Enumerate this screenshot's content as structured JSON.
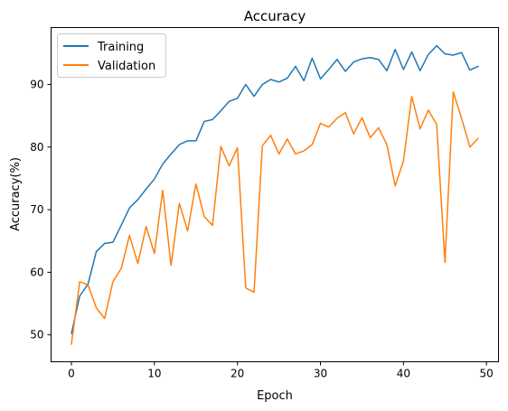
{
  "chart_data": {
    "type": "line",
    "title": "Accuracy",
    "xlabel": "Epoch",
    "ylabel": "Accuracy(%)",
    "xlim": [
      -2.45,
      51.45
    ],
    "ylim": [
      45.7,
      99.1
    ],
    "xticks": [
      0,
      10,
      20,
      30,
      40,
      50
    ],
    "yticks": [
      50,
      60,
      70,
      80,
      90
    ],
    "legend_position": "top-left",
    "grid": false,
    "x": [
      0,
      1,
      2,
      3,
      4,
      5,
      6,
      7,
      8,
      9,
      10,
      11,
      12,
      13,
      14,
      15,
      16,
      17,
      18,
      19,
      20,
      21,
      22,
      23,
      24,
      25,
      26,
      27,
      28,
      29,
      30,
      31,
      32,
      33,
      34,
      35,
      36,
      37,
      38,
      39,
      40,
      41,
      42,
      43,
      44,
      45,
      46,
      47,
      48,
      49
    ],
    "series": [
      {
        "name": "Training",
        "color": "#1f77b4",
        "values": [
          50.2,
          56.2,
          58.1,
          63.3,
          64.6,
          64.8,
          67.5,
          70.3,
          71.6,
          73.3,
          74.9,
          77.3,
          78.9,
          80.4,
          81.0,
          81.0,
          84.1,
          84.4,
          85.8,
          87.3,
          87.8,
          90.0,
          88.1,
          90.0,
          90.8,
          90.4,
          91.0,
          92.9,
          90.6,
          94.2,
          90.9,
          92.4,
          94.0,
          92.1,
          93.6,
          94.1,
          94.3,
          94.0,
          92.2,
          95.6,
          92.4,
          95.2,
          92.2,
          94.8,
          96.2,
          94.9,
          94.7,
          95.1,
          92.3,
          92.9
        ]
      },
      {
        "name": "Validation",
        "color": "#ff7f0e",
        "values": [
          48.5,
          58.5,
          58.0,
          54.3,
          52.6,
          58.5,
          60.6,
          65.9,
          61.4,
          67.3,
          63.0,
          73.1,
          61.1,
          71.0,
          66.6,
          74.1,
          68.9,
          67.5,
          80.1,
          77.0,
          79.9,
          57.5,
          56.8,
          80.2,
          81.9,
          78.9,
          81.3,
          78.9,
          79.4,
          80.4,
          83.8,
          83.2,
          84.6,
          85.5,
          82.1,
          84.7,
          81.5,
          83.1,
          80.4,
          73.8,
          77.8,
          88.1,
          82.9,
          85.9,
          83.6,
          61.6,
          88.8,
          84.6,
          80.0,
          81.4
        ]
      }
    ]
  }
}
